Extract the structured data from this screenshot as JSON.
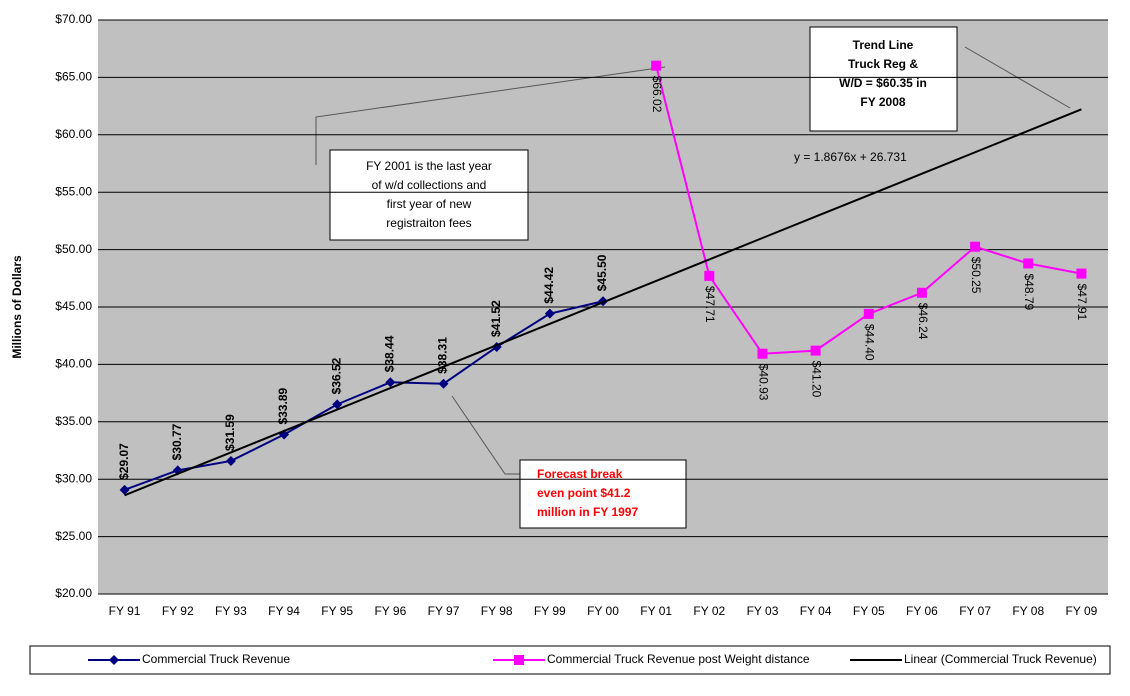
{
  "chart_data": {
    "type": "line",
    "y_label": "Millions of Dollars",
    "categories": [
      "FY 91",
      "FY 92",
      "FY 93",
      "FY 94",
      "FY 95",
      "FY 96",
      "FY 97",
      "FY 98",
      "FY 99",
      "FY 00",
      "FY 01",
      "FY 02",
      "FY 03",
      "FY 04",
      "FY 05",
      "FY 06",
      "FY 07",
      "FY 08",
      "FY 09"
    ],
    "series": [
      {
        "name": "Commercial Truck Revenue",
        "color": "#000080",
        "marker": "diamond",
        "values": [
          29.07,
          30.77,
          31.59,
          33.89,
          36.52,
          38.44,
          38.31,
          41.52,
          44.42,
          45.5,
          null,
          null,
          null,
          null,
          null,
          null,
          null,
          null,
          null
        ],
        "value_labels": [
          "$29.07",
          "$30.77",
          "$31.59",
          "$33.89",
          "$36.52",
          "$38.44",
          "$38.31",
          "$41.52",
          "$44.42",
          "$45.50",
          null,
          null,
          null,
          null,
          null,
          null,
          null,
          null,
          null
        ]
      },
      {
        "name": "Commercial Truck Revenue post Weight distance",
        "color": "#ff00ff",
        "marker": "square",
        "values": [
          null,
          null,
          null,
          null,
          null,
          null,
          null,
          null,
          null,
          null,
          66.02,
          47.71,
          40.93,
          41.2,
          44.4,
          46.24,
          50.25,
          48.79,
          47.91
        ],
        "value_labels": [
          null,
          null,
          null,
          null,
          null,
          null,
          null,
          null,
          null,
          null,
          "$66.02",
          "$47.71",
          "$40.93",
          "$41.20",
          "$44.40",
          "$46.24",
          "$50.25",
          "$48.79",
          "$47.91"
        ]
      },
      {
        "name": "Linear (Commercial Truck Revenue)",
        "color": "#000000",
        "marker": "none",
        "values": [
          28.6,
          30.47,
          32.33,
          34.2,
          36.07,
          37.94,
          39.8,
          41.67,
          43.54,
          45.41,
          47.27,
          49.14,
          51.01,
          52.88,
          54.74,
          56.61,
          58.48,
          60.35,
          62.22
        ]
      }
    ],
    "ylim": [
      20,
      70
    ],
    "yticks": [
      {
        "value": 20,
        "label": "$20.00"
      },
      {
        "value": 25,
        "label": "$25.00"
      },
      {
        "value": 30,
        "label": "$30.00"
      },
      {
        "value": 35,
        "label": "$35.00"
      },
      {
        "value": 40,
        "label": "$40.00"
      },
      {
        "value": 45,
        "label": "$45.00"
      },
      {
        "value": 50,
        "label": "$50.00"
      },
      {
        "value": 55,
        "label": "$55.00"
      },
      {
        "value": 60,
        "label": "$60.00"
      },
      {
        "value": 65,
        "label": "$65.00"
      },
      {
        "value": 70,
        "label": "$70.00"
      }
    ],
    "grid": true,
    "legend": "bottom",
    "annotations": {
      "equation": "y = 1.8676x + 26.731",
      "fy2001_note": [
        "FY 2001 is the last year",
        "of w/d collections and",
        "first year of new",
        "registraiton fees"
      ],
      "trend_note": [
        "Trend Line",
        "Truck Reg &",
        "W/D = $60.35 in",
        "FY 2008"
      ],
      "forecast_note": [
        "Forecast break",
        "even point $41.2",
        "million in FY 1997"
      ]
    }
  }
}
